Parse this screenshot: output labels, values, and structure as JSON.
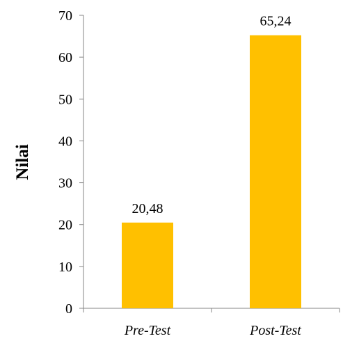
{
  "chart_data": {
    "type": "bar",
    "categories": [
      "Pre-Test",
      "Post-Test"
    ],
    "values": [
      20.48,
      65.24
    ],
    "data_labels": [
      "20,48",
      "65,24"
    ],
    "ylabel": "Nilai",
    "xlabel": "",
    "ylim": [
      0,
      70
    ],
    "y_ticks": [
      "0",
      "10",
      "20",
      "30",
      "40",
      "50",
      "60",
      "70"
    ],
    "bar_color": "#FFC000",
    "grid": false,
    "legend": "none"
  }
}
